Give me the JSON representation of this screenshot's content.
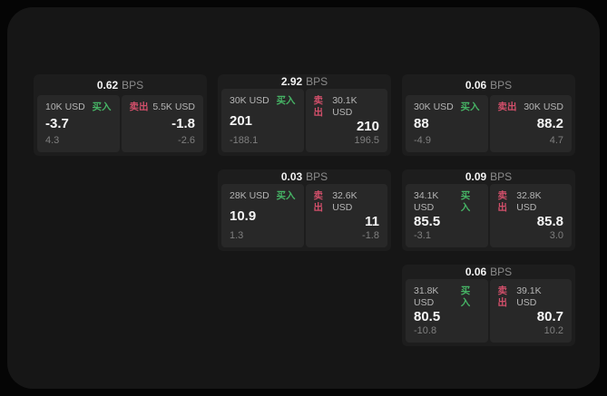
{
  "labels": {
    "bps": "BPS",
    "buy": "买入",
    "sell": "卖出"
  },
  "colors": {
    "buy": "#46b465",
    "sell": "#d14f6a",
    "value_text": "#f5f5f5",
    "secondary_text": "#7f7f7f"
  },
  "cards": [
    {
      "bps": "0.62",
      "row": 1,
      "col": 1,
      "buy": {
        "amount": "10K USD",
        "value": "-3.7",
        "secondary": "4.3"
      },
      "sell": {
        "amount": "5.5K USD",
        "value": "-1.8",
        "secondary": "-2.6"
      }
    },
    {
      "bps": "2.92",
      "row": 1,
      "col": 2,
      "buy": {
        "amount": "30K USD",
        "value": "201",
        "secondary": "-188.1"
      },
      "sell": {
        "amount": "30.1K USD",
        "value": "210",
        "secondary": "196.5"
      }
    },
    {
      "bps": "0.06",
      "row": 1,
      "col": 3,
      "buy": {
        "amount": "30K USD",
        "value": "88",
        "secondary": "-4.9"
      },
      "sell": {
        "amount": "30K USD",
        "value": "88.2",
        "secondary": "4.7"
      }
    },
    {
      "bps": "0.03",
      "row": 2,
      "col": 2,
      "buy": {
        "amount": "28K USD",
        "value": "10.9",
        "secondary": "1.3"
      },
      "sell": {
        "amount": "32.6K USD",
        "value": "11",
        "secondary": "-1.8"
      }
    },
    {
      "bps": "0.09",
      "row": 2,
      "col": 3,
      "buy": {
        "amount": "34.1K USD",
        "value": "85.5",
        "secondary": "-3.1"
      },
      "sell": {
        "amount": "32.8K USD",
        "value": "85.8",
        "secondary": "3.0"
      }
    },
    {
      "bps": "0.06",
      "row": 3,
      "col": 3,
      "buy": {
        "amount": "31.8K USD",
        "value": "80.5",
        "secondary": "-10.8"
      },
      "sell": {
        "amount": "39.1K USD",
        "value": "80.7",
        "secondary": "10.2"
      }
    }
  ]
}
